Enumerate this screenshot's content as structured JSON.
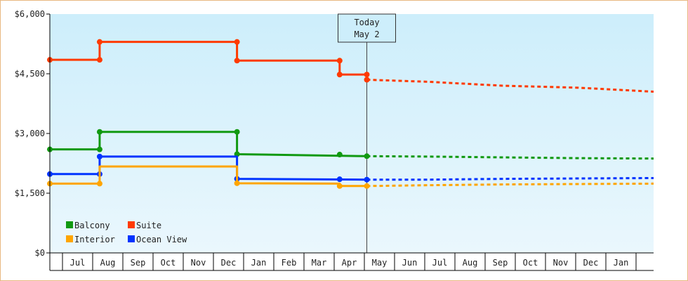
{
  "chart_data": {
    "type": "line",
    "y_ticks": [
      {
        "value": 0,
        "label": "$0"
      },
      {
        "value": 1500,
        "label": "$1,500"
      },
      {
        "value": 3000,
        "label": "$3,000"
      },
      {
        "value": 4500,
        "label": "$4,500"
      },
      {
        "value": 6000,
        "label": "$6,000"
      }
    ],
    "ylim": [
      0,
      6000
    ],
    "xlim": [
      0,
      20
    ],
    "x_ticks": [
      "Jul",
      "Aug",
      "Sep",
      "Oct",
      "Nov",
      "Dec",
      "Jan",
      "Feb",
      "Mar",
      "Apr",
      "May",
      "Jun",
      "Jul",
      "Aug",
      "Sep",
      "Oct",
      "Nov",
      "Dec",
      "Jan"
    ],
    "today": {
      "line1": "Today",
      "line2": "May 2",
      "x": 10.5
    },
    "grid": false,
    "legend": "bottom-left",
    "series": [
      {
        "name": "Suite",
        "color": "#ff3a00",
        "actual": [
          [
            0,
            4850
          ],
          [
            1.65,
            4850
          ],
          [
            1.65,
            5300
          ],
          [
            6.2,
            5300
          ],
          [
            6.2,
            4830
          ],
          [
            9.6,
            4830
          ],
          [
            9.6,
            4480
          ],
          [
            10.5,
            4480
          ],
          [
            10.5,
            4350
          ]
        ],
        "markers": [
          [
            0,
            4850
          ],
          [
            1.65,
            4850
          ],
          [
            1.65,
            5300
          ],
          [
            6.2,
            5300
          ],
          [
            6.2,
            4830
          ],
          [
            9.6,
            4830
          ],
          [
            9.6,
            4480
          ],
          [
            10.5,
            4480
          ],
          [
            10.5,
            4350
          ]
        ],
        "forecast": [
          [
            10.5,
            4350
          ],
          [
            12.5,
            4300
          ],
          [
            15,
            4200
          ],
          [
            17.5,
            4150
          ],
          [
            20,
            4050
          ]
        ]
      },
      {
        "name": "Balcony",
        "color": "#119911",
        "actual": [
          [
            0,
            2600
          ],
          [
            1.65,
            2600
          ],
          [
            1.65,
            3040
          ],
          [
            6.2,
            3040
          ],
          [
            6.2,
            2480
          ],
          [
            10.5,
            2430
          ]
        ],
        "markers": [
          [
            0,
            2600
          ],
          [
            1.65,
            2600
          ],
          [
            1.65,
            3040
          ],
          [
            6.2,
            3040
          ],
          [
            6.2,
            2480
          ],
          [
            9.6,
            2470
          ],
          [
            10.5,
            2430
          ]
        ],
        "forecast": [
          [
            10.5,
            2430
          ],
          [
            12.5,
            2420
          ],
          [
            15,
            2400
          ],
          [
            17.5,
            2380
          ],
          [
            20,
            2370
          ]
        ]
      },
      {
        "name": "Ocean View",
        "color": "#0033ff",
        "actual": [
          [
            0,
            1980
          ],
          [
            1.65,
            1980
          ],
          [
            1.65,
            2420
          ],
          [
            6.2,
            2420
          ],
          [
            6.2,
            1860
          ],
          [
            10.5,
            1840
          ]
        ],
        "markers": [
          [
            0,
            1980
          ],
          [
            1.65,
            1980
          ],
          [
            1.65,
            2420
          ],
          [
            6.2,
            1860
          ],
          [
            9.6,
            1850
          ],
          [
            10.5,
            1840
          ]
        ],
        "forecast": [
          [
            10.5,
            1840
          ],
          [
            12.5,
            1840
          ],
          [
            15,
            1860
          ],
          [
            17.5,
            1870
          ],
          [
            20,
            1880
          ]
        ]
      },
      {
        "name": "Interior",
        "color": "#ffa500",
        "actual": [
          [
            0,
            1740
          ],
          [
            1.65,
            1740
          ],
          [
            1.65,
            2170
          ],
          [
            6.2,
            2170
          ],
          [
            6.2,
            1750
          ],
          [
            9.6,
            1740
          ],
          [
            9.6,
            1680
          ],
          [
            10.5,
            1680
          ]
        ],
        "markers": [
          [
            0,
            1740
          ],
          [
            1.65,
            1740
          ],
          [
            6.2,
            1750
          ],
          [
            9.6,
            1680
          ],
          [
            10.5,
            1680
          ]
        ],
        "forecast": [
          [
            10.5,
            1680
          ],
          [
            12.5,
            1700
          ],
          [
            15,
            1720
          ],
          [
            17.5,
            1730
          ],
          [
            20,
            1740
          ]
        ]
      }
    ],
    "legend_items": [
      {
        "name": "Balcony",
        "color": "#119911"
      },
      {
        "name": "Suite",
        "color": "#ff3a00"
      },
      {
        "name": "Interior",
        "color": "#ffa500"
      },
      {
        "name": "Ocean View",
        "color": "#0033ff"
      }
    ],
    "plot_gradient": [
      "#cdeefb",
      "#eaf7fd"
    ]
  }
}
